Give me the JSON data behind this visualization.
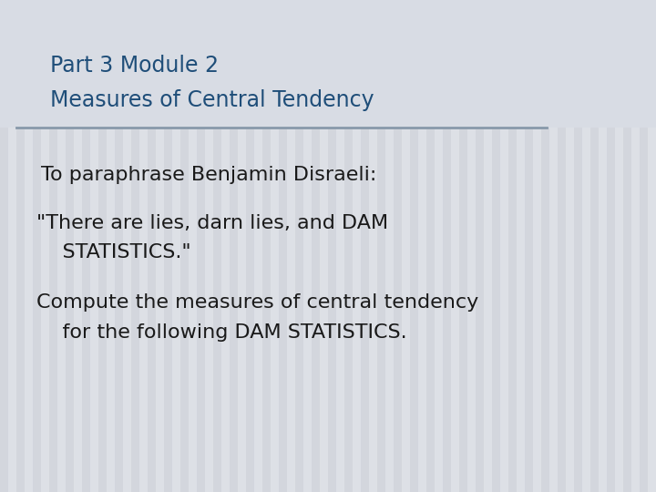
{
  "title_line1": "Part 3 Module 2",
  "title_line2": "Measures of Central Tendency",
  "title_color": "#1F4E79",
  "title_fontsize": 17,
  "body_line1": "To paraphrase Benjamin Disraeli:",
  "body_line2a": "\"There are lies, darn lies, and DAM",
  "body_line2b": "    STATISTICS.\"",
  "body_line3a": "Compute the measures of central tendency",
  "body_line3b": "    for the following DAM STATISTICS.",
  "body_color": "#1a1a1a",
  "body_fontsize": 16,
  "bg_color": "#dde0e6",
  "stripe_color": "#c8ccd4",
  "divider_color": "#8899aa",
  "title_area_color": "#d8dce4"
}
